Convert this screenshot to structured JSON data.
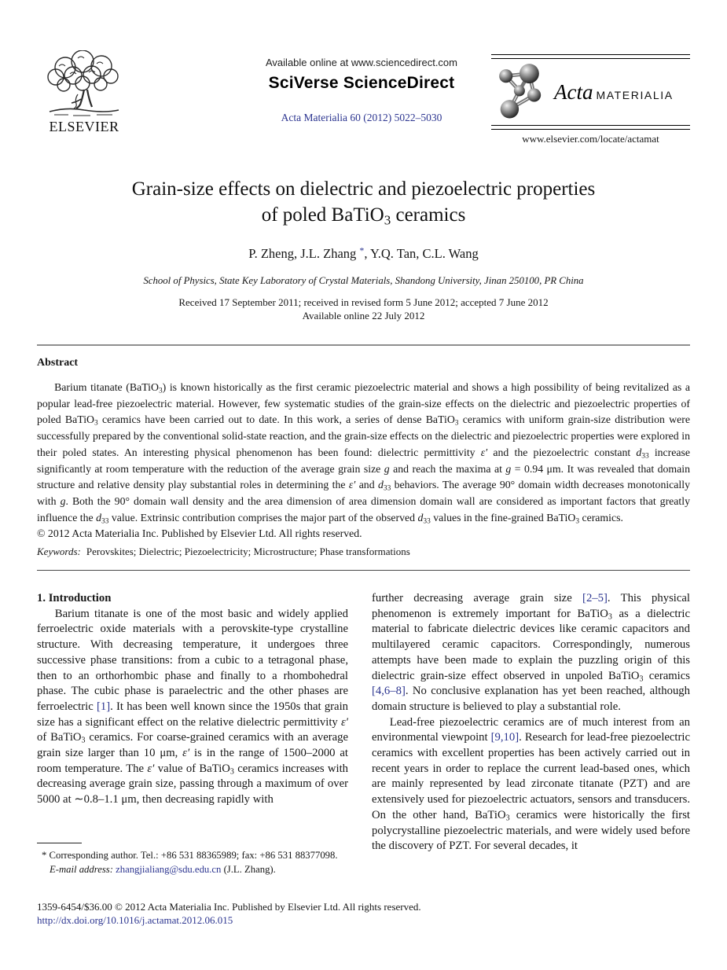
{
  "colors": {
    "link": "#2c3590",
    "text": "#161616",
    "rule_gray": "#8f8f8f"
  },
  "header": {
    "available_online": "Available online at www.sciencedirect.com",
    "sciverse_logo": "SciVerse ScienceDirect",
    "journal_ref": "Acta Materialia 60 (2012) 5022–5030",
    "elsevier_wordmark": "ELSEVIER",
    "acta_logo_italic": "Acta",
    "acta_logo_caps": "MATERIALIA",
    "locate_url": "www.elsevier.com/locate/actamat"
  },
  "article": {
    "title_line1": "Grain-size effects on dielectric and piezoelectric properties",
    "title_line2_html": "of poled BaTiO<sub>3</sub> ceramics",
    "authors_html": "P. Zheng, J.L. Zhang <sup class='lnk' data-name='corresponding-author-asterisk'>*</sup>, Y.Q. Tan, C.L. Wang",
    "affiliation": "School of Physics, State Key Laboratory of Crystal Materials, Shandong University, Jinan 250100, PR China",
    "received_line": "Received 17 September 2011; received in revised form 5 June 2012; accepted 7 June 2012",
    "available_online_date": "Available online 22 July 2012"
  },
  "abstract": {
    "heading": "Abstract",
    "body_html": "Barium titanate (BaTiO<sub>3</sub>) is known historically as the first ceramic piezoelectric material and shows a high possibility of being revitalized as a popular lead-free piezoelectric material. However, few systematic studies of the grain-size effects on the dielectric and piezoelectric properties of poled BaTiO<sub>3</sub> ceramics have been carried out to date. In this work, a series of dense BaTiO<sub>3</sub> ceramics with uniform grain-size distribution were successfully prepared by the conventional solid-state reaction, and the grain-size effects on the dielectric and piezoelectric properties were explored in their poled states. An interesting physical phenomenon has been found: dielectric permittivity <i>ε′</i> and the piezoelectric constant <i>d</i><sub>33</sub> increase significantly at room temperature with the reduction of the average grain size <i>g</i> and reach the maxima at <i>g</i> = 0.94 μm. It was revealed that domain structure and relative density play substantial roles in determining the <i>ε′</i> and <i>d</i><sub>33</sub> behaviors. The average 90° domain width decreases monotonically with <i>g</i>. Both the 90° domain wall density and the area dimension of area dimension domain wall are considered as important factors that greatly influence the <i>d</i><sub>33</sub> value. Extrinsic contribution comprises the major part of the observed <i>d</i><sub>33</sub> values in the fine-grained BaTiO<sub>3</sub> ceramics.",
    "copyright": "© 2012 Acta Materialia Inc. Published by Elsevier Ltd. All rights reserved."
  },
  "keywords": {
    "label": "Keywords:",
    "text": "Perovskites; Dielectric; Piezoelectricity; Microstructure; Phase transformations"
  },
  "introduction": {
    "heading": "1. Introduction",
    "left_paragraph_html": "Barium titanate is one of the most basic and widely applied ferroelectric oxide materials with a perovskite-type crystalline structure. With decreasing temperature, it undergoes three successive phase transitions: from a cubic to a tetragonal phase, then to an orthorhombic phase and finally to a rhombohedral phase. The cubic phase is paraelectric and the other phases are ferroelectric <span class='lnk'>[1]</span>. It has been well known since the 1950s that grain size has a significant effect on the relative dielectric permittivity <i>ε′</i> of BaTiO<sub>3</sub> ceramics. For coarse-grained ceramics with an average grain size larger than 10 μm, <i>ε′</i> is in the range of 1500–2000 at room temperature. The <i>ε′</i> value of BaTiO<sub>3</sub> ceramics increases with decreasing average grain size, passing through a maximum of over 5000 at ∼0.8–1.1 μm, then decreasing rapidly with",
    "right_paragraph1_html": "further decreasing average grain size <span class='lnk'>[2–5]</span>. This physical phenomenon is extremely important for BaTiO<sub>3</sub> as a dielectric material to fabricate dielectric devices like ceramic capacitors and multilayered ceramic capacitors. Correspondingly, numerous attempts have been made to explain the puzzling origin of this dielectric grain-size effect observed in unpoled BaTiO<sub>3</sub> ceramics <span class='lnk'>[4,6–8]</span>. No conclusive explanation has yet been reached, although domain structure is believed to play a substantial role.",
    "right_paragraph2_html": "Lead-free piezoelectric ceramics are of much interest from an environmental viewpoint <span class='lnk'>[9,10]</span>. Research for lead-free piezoelectric ceramics with excellent properties has been actively carried out in recent years in order to replace the current lead-based ones, which are mainly represented by lead zirconate titanate (PZT) and are extensively used for piezoelectric actuators, sensors and transducers. On the other hand, BaTiO<sub>3</sub> ceramics were historically the first polycrystalline piezoelectric materials, and were widely used before the discovery of PZT. For several decades, it"
  },
  "footnote": {
    "line1": "* Corresponding author. Tel.: +86 531 88365989; fax: +86 531 88377098.",
    "line2_html": "<i>E-mail address:</i> <span class='lnk' data-name='email-link'>zhangjialiang@sdu.edu.cn</span> (J.L. Zhang)."
  },
  "footer": {
    "issn_line": "1359-6454/$36.00 © 2012 Acta Materialia Inc. Published by Elsevier Ltd. All rights reserved.",
    "doi": "http://dx.doi.org/10.1016/j.actamat.2012.06.015"
  }
}
